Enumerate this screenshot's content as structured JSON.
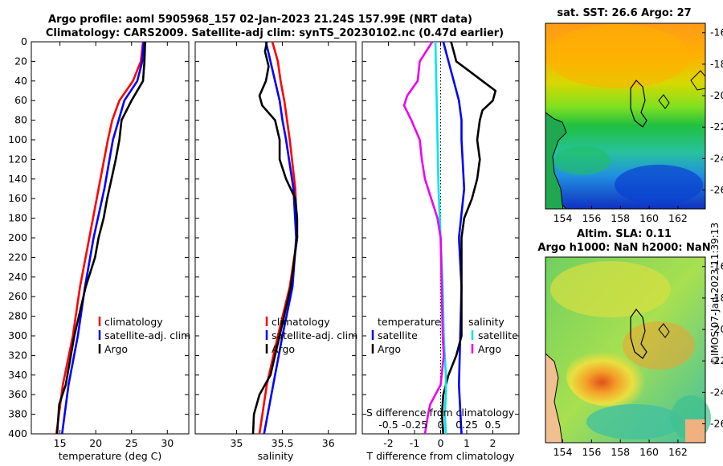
{
  "title": {
    "line1": "Argo profile: aoml 5905968_157 02-Jan-2023 21.24S 157.99E (NRT data)",
    "line2": "Climatology: CARS2009. Satellite-adj clim: synTS_20230102.nc (0.47d earlier)"
  },
  "timestamp": "©IMOS 07-Jan-2023 11:39:13",
  "colors": {
    "climatology": "#ff0000",
    "satellite": "#0000ff",
    "argo": "#000000",
    "sat_s": "#00e5ee",
    "argo_s": "#ee00ee"
  },
  "chart_data": [
    {
      "id": "temperature",
      "type": "line",
      "xlabel": "temperature (deg C)",
      "xlim": [
        11,
        33
      ],
      "xticks": [
        15,
        20,
        25,
        30
      ],
      "ylim": [
        0,
        400
      ],
      "yticks": [
        0,
        20,
        40,
        60,
        80,
        100,
        120,
        140,
        160,
        180,
        200,
        220,
        240,
        260,
        280,
        300,
        320,
        340,
        360,
        380,
        400
      ],
      "legend": [
        "climatology",
        "satellite-adj. clim",
        "Argo"
      ],
      "series": [
        {
          "name": "climatology",
          "color": "#ff0000",
          "depth": [
            0,
            20,
            40,
            60,
            80,
            100,
            150,
            200,
            250,
            300,
            350,
            400
          ],
          "values": [
            26.6,
            26.3,
            25.2,
            23.3,
            22.3,
            21.7,
            20.4,
            19.1,
            17.8,
            16.8,
            15.4,
            14.5
          ]
        },
        {
          "name": "satellite-adj. clim",
          "color": "#0000ff",
          "depth": [
            0,
            20,
            40,
            60,
            80,
            100,
            150,
            200,
            250,
            300,
            350,
            400
          ],
          "values": [
            26.7,
            26.5,
            25.8,
            24.0,
            23.2,
            22.4,
            21.2,
            19.7,
            18.5,
            17.5,
            16.2,
            15.3
          ]
        },
        {
          "name": "Argo",
          "color": "#000000",
          "depth": [
            0,
            20,
            40,
            60,
            80,
            100,
            120,
            140,
            160,
            180,
            200,
            220,
            250,
            300,
            350,
            370,
            400
          ],
          "values": [
            26.9,
            26.8,
            26.6,
            25.0,
            23.6,
            23.3,
            22.8,
            22.2,
            21.6,
            21.1,
            20.4,
            19.9,
            18.6,
            17.0,
            15.8,
            14.9,
            14.6
          ]
        }
      ]
    },
    {
      "id": "salinity",
      "type": "line",
      "xlabel": "salinity",
      "xlim": [
        34.55,
        36.3
      ],
      "xticks": [
        35,
        35.5,
        36
      ],
      "xtick_labels": [
        "35",
        "35.5",
        "36"
      ],
      "ylim": [
        0,
        400
      ],
      "legend": [
        "climatology",
        "satellite-adj. clim",
        "Argo"
      ],
      "series": [
        {
          "name": "climatology",
          "color": "#ff0000",
          "depth": [
            0,
            20,
            40,
            60,
            80,
            100,
            150,
            200,
            250,
            300,
            350,
            400
          ],
          "values": [
            35.39,
            35.45,
            35.48,
            35.52,
            35.55,
            35.58,
            35.64,
            35.66,
            35.58,
            35.45,
            35.33,
            35.25
          ]
        },
        {
          "name": "satellite-adj. clim",
          "color": "#0000ff",
          "depth": [
            0,
            20,
            40,
            60,
            80,
            100,
            150,
            200,
            250,
            300,
            350,
            400
          ],
          "values": [
            35.32,
            35.37,
            35.42,
            35.47,
            35.5,
            35.54,
            35.62,
            35.65,
            35.61,
            35.5,
            35.4,
            35.3
          ]
        },
        {
          "name": "Argo",
          "color": "#000000",
          "depth": [
            0,
            10,
            25,
            40,
            55,
            65,
            80,
            100,
            120,
            140,
            160,
            180,
            200,
            250,
            300,
            340,
            360,
            380,
            400
          ],
          "values": [
            35.33,
            35.31,
            35.35,
            35.32,
            35.25,
            35.28,
            35.42,
            35.47,
            35.47,
            35.54,
            35.64,
            35.66,
            35.66,
            35.59,
            35.47,
            35.37,
            35.25,
            35.19,
            35.18
          ]
        }
      ]
    },
    {
      "id": "difference",
      "type": "line",
      "xlabel": "T difference from climatology",
      "xlim": [
        -3,
        3
      ],
      "xticks": [
        -2,
        -1,
        0,
        1,
        2
      ],
      "xtick_labels": [
        "-2",
        "-1",
        "0",
        "1",
        "2"
      ],
      "top_label": "S difference from climatology",
      "s_ticks": [
        "-0.5",
        "-0.25",
        "0",
        "0.25",
        "0.5"
      ],
      "ylim": [
        0,
        400
      ],
      "legend_left_title": "temperature",
      "legend_right_title": "salinity",
      "legend_left": [
        "satellite",
        "Argo"
      ],
      "legend_right": [
        "satellite",
        "Argo"
      ],
      "series": [
        {
          "name": "T satellite",
          "color": "#0000ff",
          "depth": [
            0,
            20,
            40,
            60,
            80,
            100,
            150,
            200,
            250,
            300,
            350,
            400
          ],
          "values": [
            0.1,
            0.3,
            0.5,
            0.7,
            0.8,
            0.8,
            0.9,
            0.7,
            0.8,
            0.75,
            0.7,
            0.8
          ]
        },
        {
          "name": "T Argo",
          "color": "#000000",
          "depth": [
            0,
            10,
            20,
            30,
            40,
            50,
            60,
            70,
            80,
            100,
            120,
            140,
            160,
            180,
            200,
            250,
            300,
            320,
            340,
            360,
            380,
            400
          ],
          "values": [
            0.4,
            0.5,
            0.6,
            1.1,
            1.6,
            2.1,
            2.0,
            1.6,
            1.5,
            1.4,
            1.5,
            1.4,
            1.2,
            0.9,
            0.8,
            0.8,
            0.8,
            0.6,
            0.3,
            0.1,
            0.05,
            0.1
          ]
        },
        {
          "name": "S satellite",
          "color": "#00e5ee",
          "depth": [
            0,
            50,
            100,
            150,
            200,
            250,
            300,
            340,
            360,
            380,
            400
          ],
          "values": [
            -0.05,
            -0.04,
            -0.03,
            -0.02,
            0,
            0.02,
            0.03,
            0.05,
            0.05,
            0.04,
            0.05
          ]
        },
        {
          "name": "S Argo",
          "color": "#ee00ee",
          "depth": [
            0,
            20,
            40,
            55,
            65,
            80,
            100,
            120,
            140,
            160,
            180,
            200,
            250,
            300,
            320,
            350,
            370,
            380,
            400
          ],
          "values": [
            -0.08,
            -0.2,
            -0.22,
            -0.32,
            -0.35,
            -0.28,
            -0.2,
            -0.18,
            -0.15,
            -0.09,
            -0.03,
            0.0,
            0.01,
            0.02,
            0.03,
            0,
            -0.1,
            -0.12,
            -0.15
          ]
        }
      ]
    }
  ],
  "maps": [
    {
      "id": "sst",
      "title": "sat. SST: 26.6 Argo: 27",
      "lon_ticks": [
        "154",
        "156",
        "158",
        "160",
        "162"
      ],
      "lat_ticks": [
        "-16",
        "-18",
        "-20",
        "-22",
        "-24",
        "-26"
      ]
    },
    {
      "id": "sla",
      "title1": "Altim. SLA: 0.11",
      "title2": "Argo h1000: NaN h2000: NaN",
      "lon_ticks": [
        "154",
        "156",
        "158",
        "160",
        "162"
      ],
      "lat_ticks": [
        "-16",
        "-18",
        "-20",
        "-22",
        "-24",
        "-26"
      ]
    }
  ]
}
